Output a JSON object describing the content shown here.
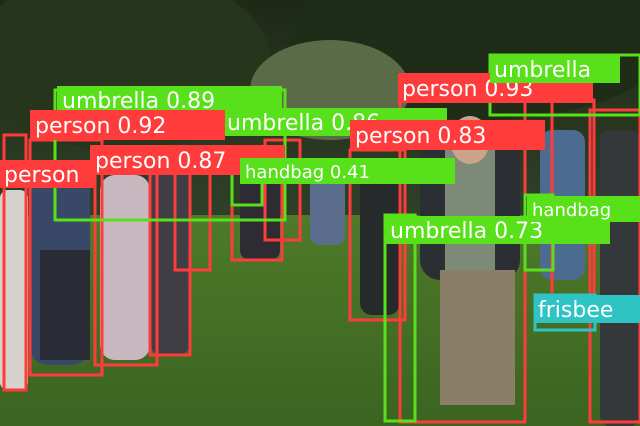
{
  "detections": [
    {
      "label": "person 0.93",
      "color": "#ff3b3b"
    },
    {
      "label": "umbrella 0.89",
      "color": "#58e01a"
    },
    {
      "label": "umbrella 0.86",
      "color": "#58e01a"
    },
    {
      "label": "person 0.92",
      "color": "#ff3b3b"
    },
    {
      "label": "person 0.87",
      "color": "#ff3b3b"
    },
    {
      "label": "person 0.83",
      "color": "#ff3b3b"
    },
    {
      "label": "handbag 0.41",
      "color": "#58e01a"
    },
    {
      "label": "umbrella 0.73",
      "color": "#58e01a"
    },
    {
      "label": "handbag",
      "color": "#58e01a"
    },
    {
      "label": "frisbee",
      "color": "#2ec4c4"
    },
    {
      "label": "umbrella",
      "color": "#58e01a"
    },
    {
      "label": "person",
      "color": "#ff3b3b"
    }
  ]
}
